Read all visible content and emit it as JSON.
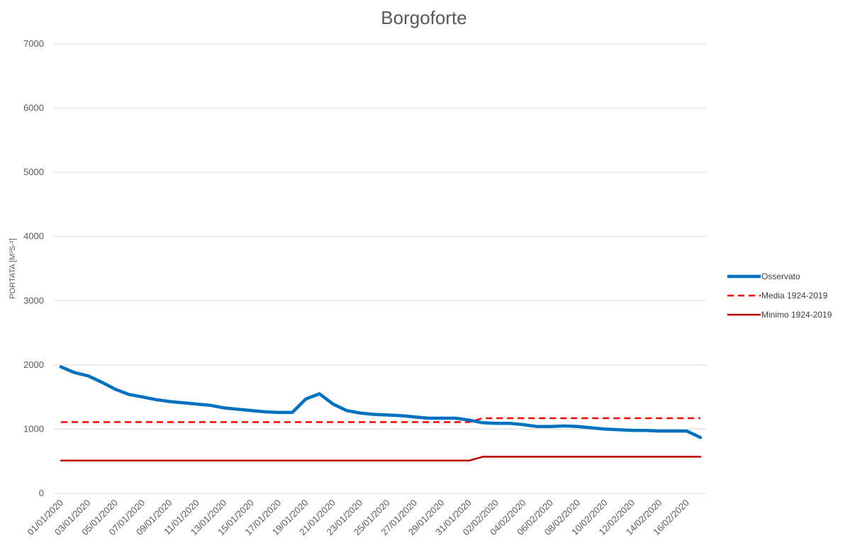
{
  "chart_data": {
    "type": "line",
    "title": "Borgoforte",
    "xlabel": "",
    "ylabel": "PORTATA [M³S-¹]",
    "ylim": [
      0,
      7000
    ],
    "yticks": [
      0,
      1000,
      2000,
      3000,
      4000,
      5000,
      6000,
      7000
    ],
    "grid": true,
    "legend_position": "right",
    "x": [
      "01/01/2020",
      "02/01/2020",
      "03/01/2020",
      "04/01/2020",
      "05/01/2020",
      "06/01/2020",
      "07/01/2020",
      "08/01/2020",
      "09/01/2020",
      "10/01/2020",
      "11/01/2020",
      "12/01/2020",
      "13/01/2020",
      "14/01/2020",
      "15/01/2020",
      "16/01/2020",
      "17/01/2020",
      "18/01/2020",
      "19/01/2020",
      "20/01/2020",
      "21/01/2020",
      "22/01/2020",
      "23/01/2020",
      "24/01/2020",
      "25/01/2020",
      "26/01/2020",
      "27/01/2020",
      "28/01/2020",
      "29/01/2020",
      "30/01/2020",
      "31/01/2020",
      "01/02/2020",
      "02/02/2020",
      "03/02/2020",
      "04/02/2020",
      "05/02/2020",
      "06/02/2020",
      "07/02/2020",
      "08/02/2020",
      "09/02/2020",
      "10/02/2020",
      "11/02/2020",
      "12/02/2020",
      "13/02/2020",
      "14/02/2020",
      "15/02/2020",
      "16/02/2020",
      "17/02/2020"
    ],
    "xtick_labels": [
      "01/01/2020",
      "03/01/2020",
      "05/01/2020",
      "07/01/2020",
      "09/01/2020",
      "11/01/2020",
      "13/01/2020",
      "15/01/2020",
      "17/01/2020",
      "19/01/2020",
      "21/01/2020",
      "23/01/2020",
      "25/01/2020",
      "27/01/2020",
      "29/01/2020",
      "31/01/2020",
      "02/02/2020",
      "04/02/2020",
      "06/02/2020",
      "08/02/2020",
      "10/02/2020",
      "12/02/2020",
      "14/02/2020",
      "16/02/2020"
    ],
    "series": [
      {
        "name": "Osservato",
        "color": "#0070C0",
        "style": "solid",
        "values": [
          1970,
          1880,
          1830,
          1730,
          1620,
          1540,
          1500,
          1460,
          1430,
          1410,
          1390,
          1370,
          1330,
          1310,
          1290,
          1270,
          1260,
          1260,
          1470,
          1550,
          1390,
          1290,
          1250,
          1230,
          1220,
          1210,
          1190,
          1170,
          1170,
          1170,
          1140,
          1100,
          1090,
          1090,
          1070,
          1040,
          1040,
          1050,
          1040,
          1020,
          1000,
          990,
          980,
          980,
          970,
          970,
          970,
          870
        ]
      },
      {
        "name": "Media 1924-2019",
        "color": "#FF0000",
        "style": "dashed",
        "values": [
          1110,
          1110,
          1110,
          1110,
          1110,
          1110,
          1110,
          1110,
          1110,
          1110,
          1110,
          1110,
          1110,
          1110,
          1110,
          1110,
          1110,
          1110,
          1110,
          1110,
          1110,
          1110,
          1110,
          1110,
          1110,
          1110,
          1110,
          1110,
          1110,
          1110,
          1110,
          1170,
          1170,
          1170,
          1170,
          1170,
          1170,
          1170,
          1170,
          1170,
          1170,
          1170,
          1170,
          1170,
          1170,
          1170,
          1170,
          1170
        ]
      },
      {
        "name": "Minimo 1924-2019",
        "color": "#C00000",
        "style": "solid",
        "values": [
          510,
          510,
          510,
          510,
          510,
          510,
          510,
          510,
          510,
          510,
          510,
          510,
          510,
          510,
          510,
          510,
          510,
          510,
          510,
          510,
          510,
          510,
          510,
          510,
          510,
          510,
          510,
          510,
          510,
          510,
          510,
          570,
          570,
          570,
          570,
          570,
          570,
          570,
          570,
          570,
          570,
          570,
          570,
          570,
          570,
          570,
          570,
          570
        ]
      }
    ]
  }
}
